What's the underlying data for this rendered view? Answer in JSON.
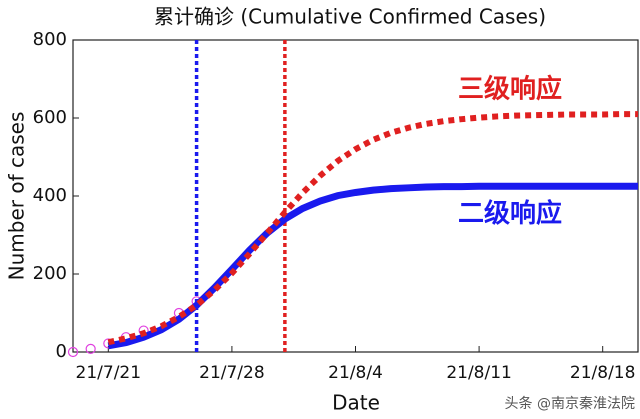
{
  "chart_data": {
    "type": "line",
    "title": "累计确诊 (Cumulative Confirmed Cases)",
    "x_label": "Date",
    "y_label": "Number of cases",
    "x": [
      "21/7/21",
      "21/7/22",
      "21/7/23",
      "21/7/24",
      "21/7/25",
      "21/7/26",
      "21/7/27",
      "21/7/28",
      "21/7/29",
      "21/7/30",
      "21/7/31",
      "21/8/1",
      "21/8/2",
      "21/8/3",
      "21/8/4",
      "21/8/5",
      "21/8/6",
      "21/8/7",
      "21/8/8",
      "21/8/9",
      "21/8/10",
      "21/8/11",
      "21/8/12",
      "21/8/13",
      "21/8/14",
      "21/8/15",
      "21/8/16",
      "21/8/17",
      "21/8/18",
      "21/8/19",
      "21/8/20"
    ],
    "series": [
      {
        "name": "三级响应",
        "color": "#e02020",
        "style": "dotted",
        "values": [
          25,
          35,
          48,
          66,
          90,
          120,
          158,
          202,
          252,
          305,
          358,
          408,
          452,
          490,
          520,
          544,
          562,
          575,
          585,
          592,
          597,
          601,
          604,
          606,
          607,
          608,
          609,
          609,
          609,
          610,
          610
        ]
      },
      {
        "name": "二级响应",
        "color": "#1a1aee",
        "style": "solid",
        "values": [
          16,
          24,
          38,
          57,
          84,
          120,
          164,
          212,
          261,
          305,
          341,
          368,
          387,
          401,
          409,
          415,
          419,
          421,
          423,
          424,
          424,
          425,
          425,
          425,
          425,
          425,
          425,
          425,
          425,
          425,
          425
        ]
      }
    ],
    "observed": {
      "color": "#e040e0",
      "x": [
        "21/7/19",
        "21/7/20",
        "21/7/21",
        "21/7/22",
        "21/7/23",
        "21/7/25",
        "21/7/26"
      ],
      "values": [
        0,
        8,
        22,
        38,
        55,
        100,
        130
      ]
    },
    "vlines": [
      {
        "x": "21/7/26",
        "color": "#1a1aee"
      },
      {
        "x": "21/7/31",
        "color": "#e02020"
      }
    ],
    "xlim": [
      "21/7/19",
      "21/8/20"
    ],
    "xticks": [
      "21/7/21",
      "21/7/28",
      "21/8/4",
      "21/8/11",
      "21/8/18"
    ],
    "ylim": [
      0,
      800
    ],
    "yticks": [
      0,
      200,
      400,
      600,
      800
    ],
    "grid": false,
    "watermark": "头条 @南京秦淮法院"
  }
}
